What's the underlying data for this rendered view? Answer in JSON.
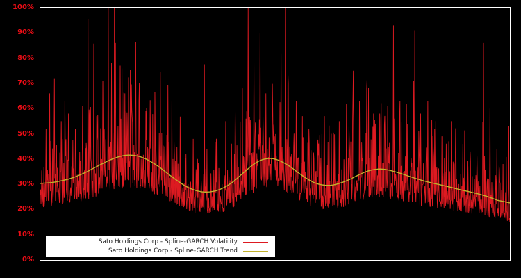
{
  "chart_data": {
    "type": "line",
    "title": "",
    "xlabel": "",
    "ylabel": "",
    "ylim": [
      0,
      100
    ],
    "yticks": [
      "0%",
      "10%",
      "20%",
      "30%",
      "40%",
      "50%",
      "60%",
      "70%",
      "80%",
      "90%",
      "100%"
    ],
    "x_range": [
      0,
      1
    ],
    "grid": false,
    "background_color": "#000000",
    "frame_color": "#ffffff",
    "tick_label_color": "#ee0d16",
    "legend_position": "lower left",
    "legend_background": "#ffffff",
    "legend_text_color": "#1c1c1c",
    "series": [
      {
        "name": "Sato Holdings Corp - Spline-GARCH Volatility",
        "color": "#dd1a21",
        "style": "spiky"
      },
      {
        "name": "Sato Holdings Corp - Spline-GARCH Trend",
        "color": "#c2b22b",
        "style": "smooth"
      }
    ],
    "trend": {
      "x": [
        0,
        0.04,
        0.08,
        0.11,
        0.14,
        0.17,
        0.2,
        0.23,
        0.26,
        0.3,
        0.33,
        0.36,
        0.39,
        0.42,
        0.45,
        0.48,
        0.51,
        0.54,
        0.57,
        0.6,
        0.64,
        0.68,
        0.71,
        0.74,
        0.78,
        0.82,
        0.86,
        0.9,
        0.94,
        0.97,
        1.0
      ],
      "y": [
        30,
        31,
        33,
        36,
        39,
        41.5,
        42,
        40,
        36,
        30,
        27,
        26.5,
        28,
        32,
        38,
        41,
        40,
        36,
        31.5,
        29,
        30,
        34,
        36.5,
        36,
        33.5,
        31,
        29.5,
        27.5,
        26,
        24,
        21.5
      ]
    },
    "volatility": {
      "points": 1300,
      "seed": 20240613,
      "base_factor": 0.68,
      "noise_scale": 0.3,
      "min_factor": 0.62,
      "max_value": 100,
      "spikes": [
        [
          0.012,
          52
        ],
        [
          0.02,
          66
        ],
        [
          0.03,
          72
        ],
        [
          0.045,
          55
        ],
        [
          0.06,
          58
        ],
        [
          0.075,
          52
        ],
        [
          0.09,
          61
        ],
        [
          0.105,
          56
        ],
        [
          0.12,
          57
        ],
        [
          0.133,
          71
        ],
        [
          0.1445,
          100
        ],
        [
          0.152,
          78
        ],
        [
          0.16,
          86
        ],
        [
          0.17,
          77
        ],
        [
          0.18,
          66
        ],
        [
          0.195,
          60
        ],
        [
          0.21,
          63
        ],
        [
          0.225,
          59
        ],
        [
          0.245,
          50
        ],
        [
          0.265,
          45
        ],
        [
          0.285,
          47
        ],
        [
          0.31,
          42
        ],
        [
          0.335,
          40
        ],
        [
          0.355,
          44
        ],
        [
          0.375,
          48
        ],
        [
          0.395,
          55
        ],
        [
          0.415,
          60
        ],
        [
          0.43,
          68
        ],
        [
          0.443,
          100
        ],
        [
          0.455,
          78
        ],
        [
          0.468,
          90
        ],
        [
          0.48,
          66
        ],
        [
          0.495,
          60
        ],
        [
          0.513,
          82
        ],
        [
          0.528,
          70
        ],
        [
          0.545,
          63
        ],
        [
          0.558,
          57
        ],
        [
          0.572,
          52
        ],
        [
          0.59,
          48
        ],
        [
          0.605,
          57
        ],
        [
          0.62,
          50
        ],
        [
          0.637,
          55
        ],
        [
          0.652,
          62
        ],
        [
          0.667,
          75
        ],
        [
          0.68,
          63
        ],
        [
          0.695,
          68
        ],
        [
          0.71,
          58
        ],
        [
          0.725,
          55
        ],
        [
          0.74,
          61
        ],
        [
          0.752,
          93
        ],
        [
          0.765,
          57
        ],
        [
          0.78,
          62
        ],
        [
          0.795,
          71
        ],
        [
          0.81,
          58
        ],
        [
          0.825,
          63
        ],
        [
          0.84,
          52
        ],
        [
          0.855,
          49
        ],
        [
          0.87,
          47
        ],
        [
          0.885,
          45
        ],
        [
          0.9,
          46
        ],
        [
          0.915,
          43
        ],
        [
          0.93,
          41
        ],
        [
          0.944,
          86
        ],
        [
          0.958,
          60
        ],
        [
          0.972,
          44
        ],
        [
          0.985,
          38
        ]
      ]
    }
  }
}
